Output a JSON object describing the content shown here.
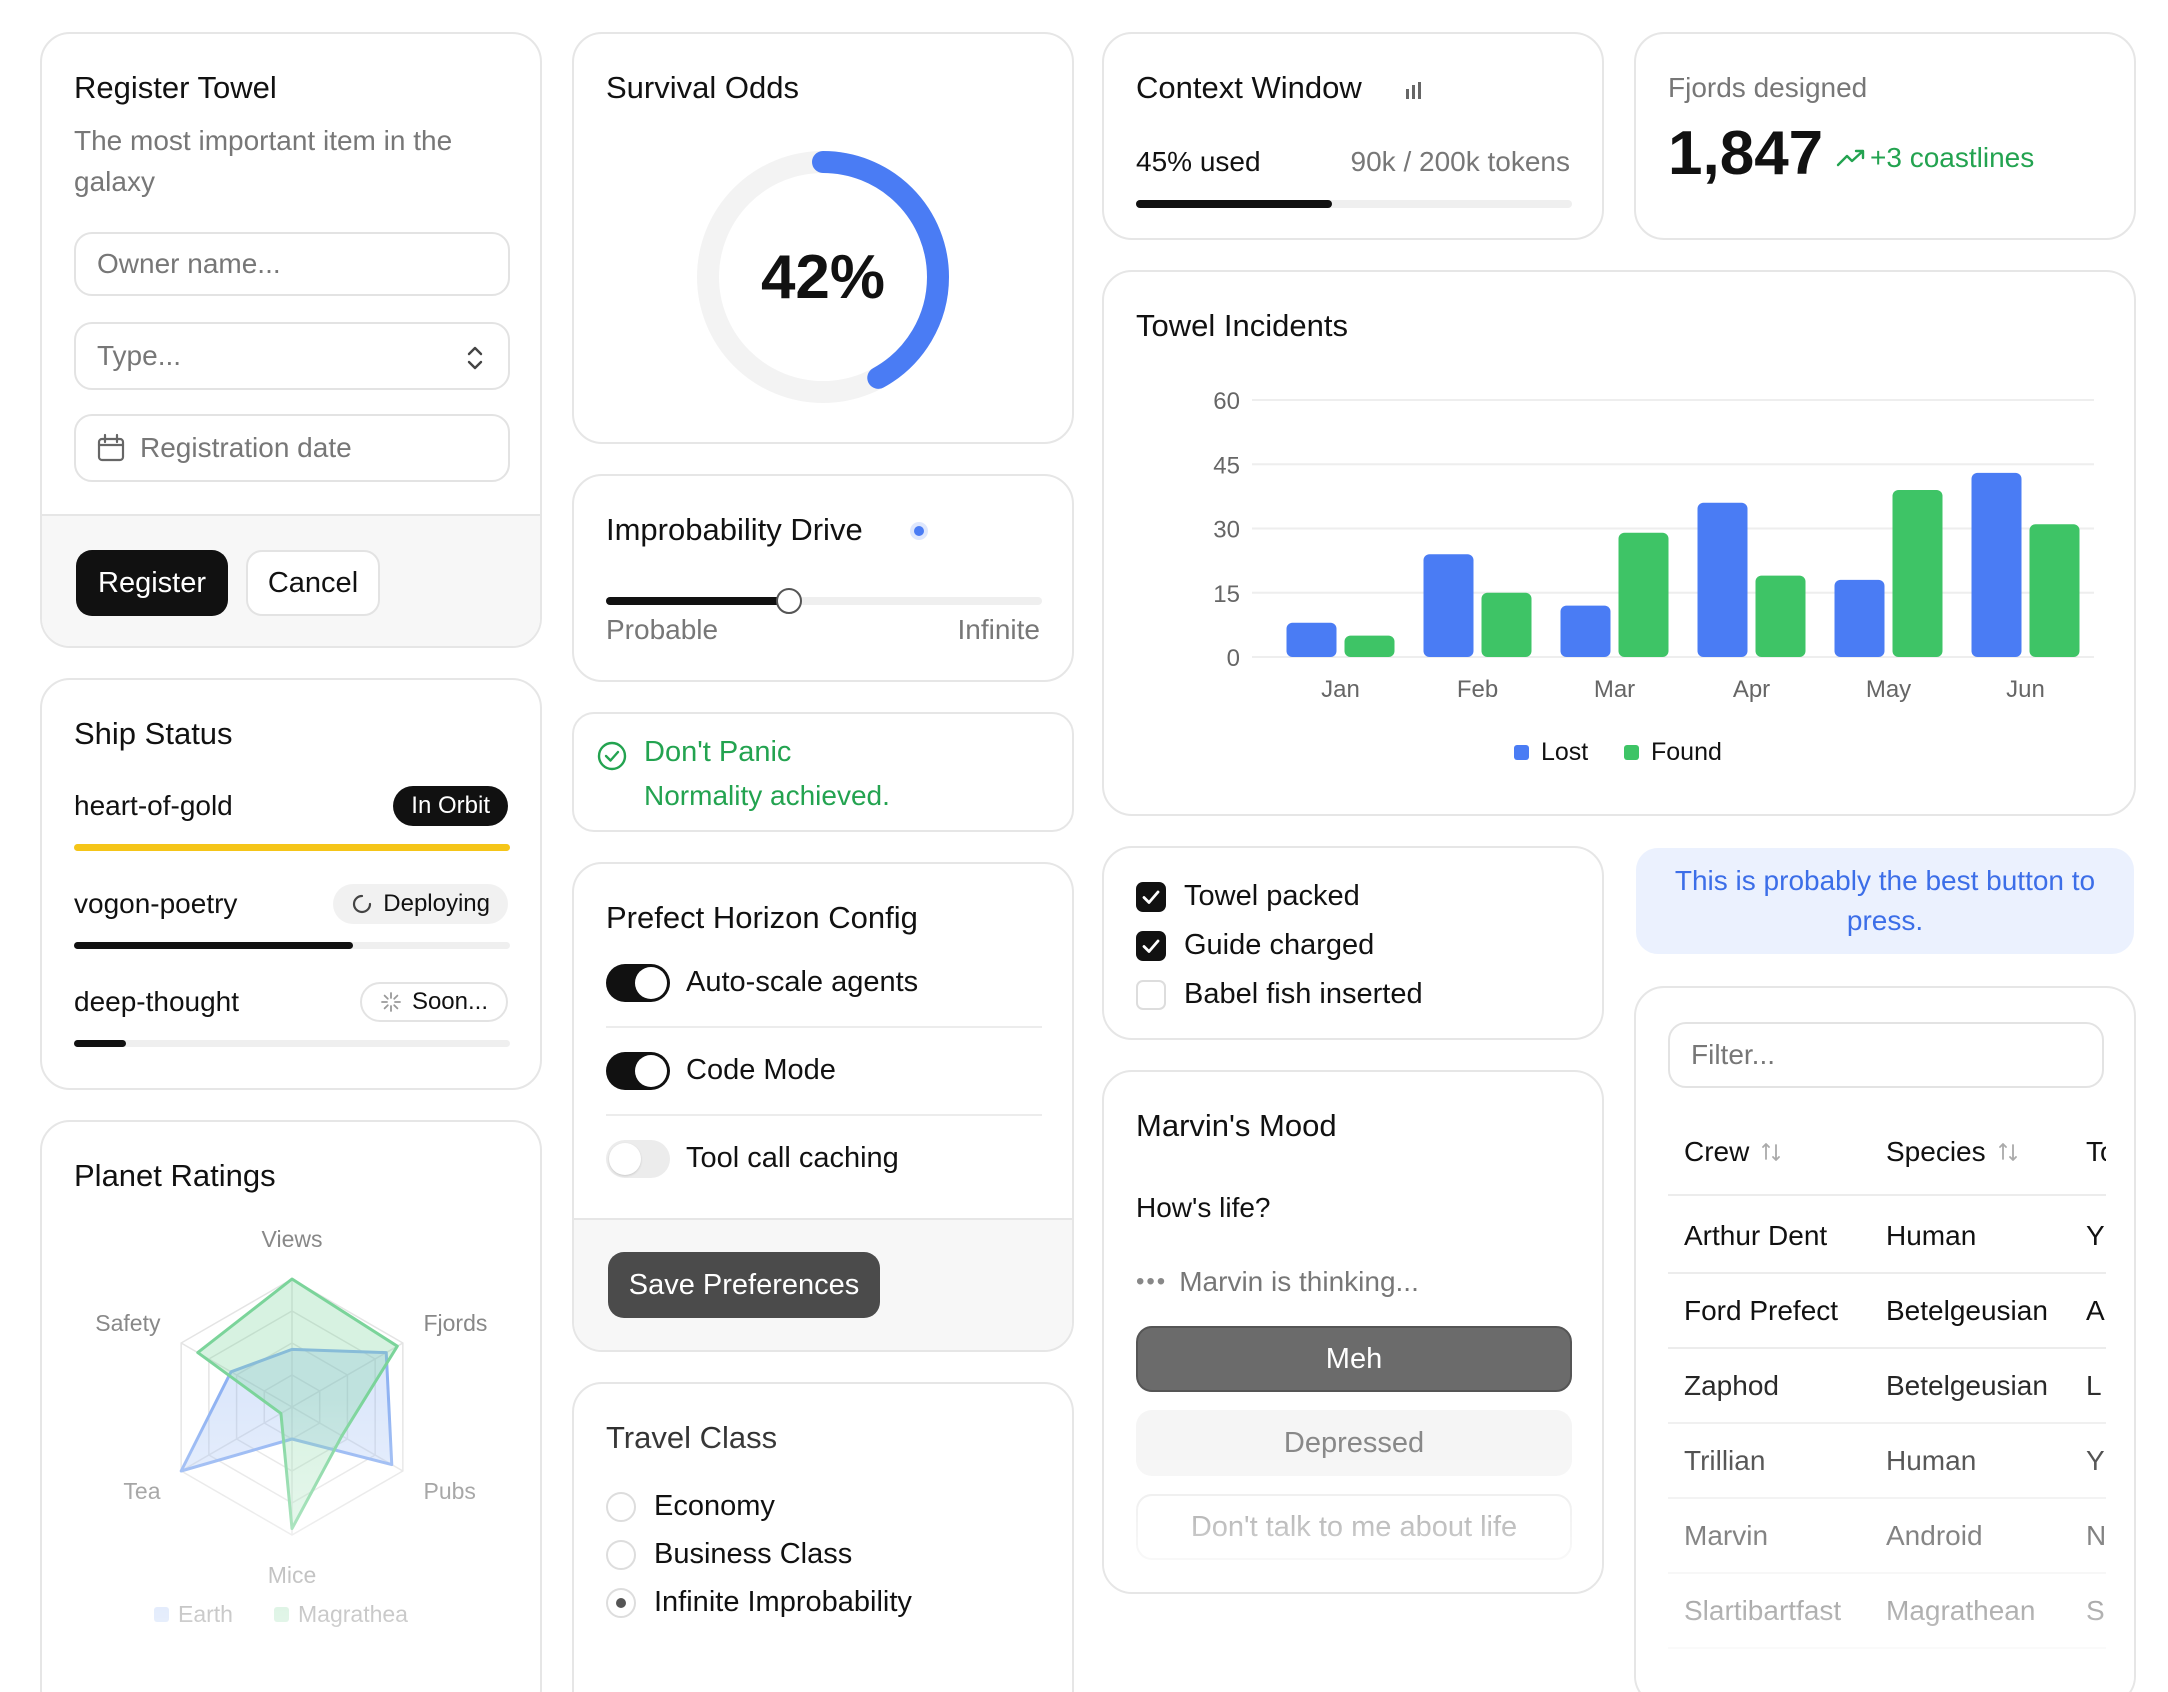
{
  "register": {
    "title": "Register Towel",
    "subtitle": "The most important item in the galaxy",
    "owner_placeholder": "Owner name...",
    "type_placeholder": "Type...",
    "date_placeholder": "Registration date",
    "register_label": "Register",
    "cancel_label": "Cancel"
  },
  "survival": {
    "title": "Survival Odds",
    "value": "42%",
    "fraction": 0.42,
    "color": "#4a7cf4"
  },
  "context": {
    "title": "Context Window",
    "used_label": "45% used",
    "tokens_label": "90k / 200k tokens",
    "fraction": 0.45
  },
  "fjords": {
    "title": "Fjords designed",
    "value": "1,847",
    "delta": "+3 coastlines"
  },
  "towel_chart": {
    "title": "Towel Incidents",
    "chart_data": {
      "type": "bar",
      "categories": [
        "Jan",
        "Feb",
        "Mar",
        "Apr",
        "May",
        "Jun"
      ],
      "series": [
        {
          "name": "Lost",
          "values": [
            8,
            24,
            12,
            36,
            18,
            43
          ],
          "color": "#4a7cf4"
        },
        {
          "name": "Found",
          "values": [
            5,
            15,
            29,
            19,
            39,
            31
          ],
          "color": "#3ec466"
        }
      ],
      "yticks": [
        "60",
        "45",
        "30",
        "15",
        "0"
      ],
      "ylim": [
        0,
        60
      ],
      "grid": true,
      "legend": "bottom-center"
    }
  },
  "ship": {
    "title": "Ship Status",
    "items": [
      {
        "name": "heart-of-gold",
        "badge": "In Orbit",
        "progress": 1.0,
        "bar_color": "#f5c518"
      },
      {
        "name": "vogon-poetry",
        "badge": "Deploying",
        "progress": 0.64,
        "bar_color": "#111111"
      },
      {
        "name": "deep-thought",
        "badge": "Soon...",
        "progress": 0.12,
        "bar_color": "#111111"
      }
    ]
  },
  "drive": {
    "title": "Improbability Drive",
    "left_label": "Probable",
    "right_label": "Infinite",
    "value": 0.42
  },
  "panic": {
    "title": "Don't Panic",
    "message": "Normality achieved."
  },
  "prefect": {
    "title": "Prefect Horizon Config",
    "toggles": [
      {
        "label": "Auto-scale agents",
        "on": true
      },
      {
        "label": "Code Mode",
        "on": true
      },
      {
        "label": "Tool call caching",
        "on": false
      }
    ],
    "save_label": "Save Preferences"
  },
  "checklist": [
    {
      "label": "Towel packed",
      "checked": true
    },
    {
      "label": "Guide charged",
      "checked": true
    },
    {
      "label": "Babel fish inserted",
      "checked": false
    }
  ],
  "best_button": {
    "label": "This is probably the best button to press."
  },
  "marvin": {
    "title": "Marvin's Mood",
    "question": "How's life?",
    "thinking": "Marvin is thinking...",
    "options": [
      "Meh",
      "Depressed",
      "Don't talk to me about life"
    ]
  },
  "planet": {
    "title": "Planet Ratings",
    "axes": [
      "Views",
      "Fjords",
      "Pubs",
      "Mice",
      "Tea",
      "Safety"
    ],
    "series": [
      {
        "name": "Earth",
        "values": [
          0.45,
          0.85,
          0.9,
          0.25,
          1.0,
          0.55
        ],
        "color": "#8fb2f2"
      },
      {
        "name": "Magrathea",
        "values": [
          1.0,
          0.95,
          0.45,
          0.95,
          0.1,
          0.85
        ],
        "color": "#7bd49a"
      }
    ]
  },
  "travel": {
    "title": "Travel Class",
    "options": [
      "Economy",
      "Business Class",
      "Infinite Improbability"
    ],
    "selected": 2
  },
  "crew": {
    "filter_placeholder": "Filter...",
    "headers": [
      "Crew",
      "Species",
      "To"
    ],
    "rows": [
      [
        "Arthur Dent",
        "Human",
        "Y"
      ],
      [
        "Ford Prefect",
        "Betelgeusian",
        "A"
      ],
      [
        "Zaphod",
        "Betelgeusian",
        "L"
      ],
      [
        "Trillian",
        "Human",
        "Y"
      ],
      [
        "Marvin",
        "Android",
        "N"
      ],
      [
        "Slartibartfast",
        "Magrathean",
        "S"
      ]
    ]
  }
}
